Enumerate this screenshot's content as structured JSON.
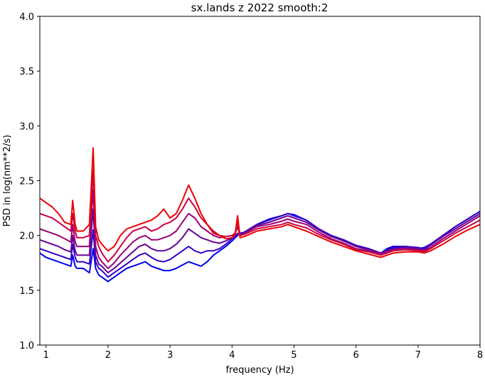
{
  "chart_data": {
    "type": "line",
    "title": "sx.lands z 2022 smooth:2",
    "xlabel": "frequency (Hz)",
    "ylabel": "PSD in log(nm**2/s)",
    "xlim": [
      0.9,
      8.0
    ],
    "ylim": [
      1.0,
      4.0
    ],
    "xticks": [
      1,
      2,
      3,
      4,
      5,
      6,
      7,
      8
    ],
    "yticks": [
      1.0,
      1.5,
      2.0,
      2.5,
      3.0,
      3.5,
      4.0
    ],
    "x_tick_labels": [
      "1",
      "2",
      "3",
      "4",
      "5",
      "6",
      "7",
      "8"
    ],
    "y_tick_labels": [
      "1.0",
      "1.5",
      "2.0",
      "2.5",
      "3.0",
      "3.5",
      "4.0"
    ],
    "grid": false,
    "legend": "none",
    "x": [
      0.9,
      1.0,
      1.1,
      1.2,
      1.3,
      1.4,
      1.43,
      1.47,
      1.5,
      1.6,
      1.7,
      1.76,
      1.8,
      1.85,
      1.9,
      2.0,
      2.1,
      2.2,
      2.3,
      2.4,
      2.5,
      2.6,
      2.7,
      2.8,
      2.9,
      3.0,
      3.1,
      3.2,
      3.3,
      3.4,
      3.5,
      3.6,
      3.7,
      3.8,
      3.9,
      4.0,
      4.05,
      4.09,
      4.13,
      4.2,
      4.4,
      4.6,
      4.8,
      4.9,
      5.0,
      5.2,
      5.4,
      5.6,
      5.8,
      6.0,
      6.2,
      6.4,
      6.5,
      6.6,
      6.8,
      7.0,
      7.1,
      7.2,
      7.4,
      7.6,
      7.8,
      8.0
    ],
    "series": [
      {
        "color": "#0000ee",
        "values": [
          1.84,
          1.8,
          1.78,
          1.76,
          1.74,
          1.72,
          1.82,
          1.72,
          1.7,
          1.7,
          1.66,
          1.88,
          1.7,
          1.64,
          1.62,
          1.58,
          1.62,
          1.66,
          1.7,
          1.72,
          1.74,
          1.76,
          1.72,
          1.7,
          1.68,
          1.68,
          1.7,
          1.73,
          1.76,
          1.74,
          1.72,
          1.76,
          1.82,
          1.86,
          1.9,
          1.95,
          1.98,
          2.0,
          2.02,
          2.03,
          2.1,
          2.15,
          2.18,
          2.2,
          2.19,
          2.14,
          2.06,
          2.0,
          1.96,
          1.91,
          1.88,
          1.84,
          1.88,
          1.9,
          1.9,
          1.88,
          1.89,
          1.92,
          2.0,
          2.08,
          2.15,
          2.22
        ]
      },
      {
        "color": "#3300cc",
        "values": [
          1.88,
          1.86,
          1.84,
          1.82,
          1.8,
          1.78,
          1.92,
          1.8,
          1.76,
          1.76,
          1.74,
          2.05,
          1.76,
          1.7,
          1.68,
          1.62,
          1.66,
          1.7,
          1.74,
          1.78,
          1.82,
          1.84,
          1.8,
          1.77,
          1.76,
          1.78,
          1.82,
          1.86,
          1.9,
          1.86,
          1.84,
          1.86,
          1.86,
          1.88,
          1.92,
          1.97,
          1.99,
          2.02,
          2.01,
          2.03,
          2.1,
          2.14,
          2.18,
          2.2,
          2.18,
          2.14,
          2.06,
          2.0,
          1.96,
          1.91,
          1.88,
          1.84,
          1.87,
          1.89,
          1.9,
          1.89,
          1.88,
          1.92,
          2.0,
          2.08,
          2.15,
          2.22
        ]
      },
      {
        "color": "#660099",
        "values": [
          1.96,
          1.94,
          1.92,
          1.9,
          1.87,
          1.85,
          2.0,
          1.86,
          1.82,
          1.82,
          1.82,
          2.24,
          1.82,
          1.74,
          1.72,
          1.66,
          1.7,
          1.75,
          1.8,
          1.85,
          1.9,
          1.92,
          1.88,
          1.86,
          1.86,
          1.88,
          1.92,
          1.98,
          2.06,
          2.02,
          1.98,
          1.96,
          1.94,
          1.93,
          1.95,
          1.98,
          2.0,
          2.02,
          2.0,
          2.02,
          2.09,
          2.12,
          2.16,
          2.18,
          2.16,
          2.12,
          2.05,
          1.99,
          1.95,
          1.9,
          1.87,
          1.84,
          1.86,
          1.88,
          1.89,
          1.88,
          1.87,
          1.91,
          1.99,
          2.06,
          2.13,
          2.2
        ]
      },
      {
        "color": "#990077",
        "values": [
          2.06,
          2.04,
          2.02,
          2.0,
          1.97,
          1.94,
          2.1,
          1.94,
          1.9,
          1.9,
          1.9,
          2.42,
          1.9,
          1.8,
          1.76,
          1.7,
          1.75,
          1.82,
          1.88,
          1.94,
          1.98,
          2.0,
          1.96,
          1.96,
          1.98,
          2.0,
          2.04,
          2.12,
          2.2,
          2.16,
          2.08,
          2.04,
          2.0,
          1.98,
          1.99,
          2.0,
          2.02,
          2.08,
          2.0,
          2.02,
          2.08,
          2.1,
          2.13,
          2.15,
          2.13,
          2.1,
          2.03,
          1.97,
          1.93,
          1.88,
          1.86,
          1.83,
          1.85,
          1.87,
          1.88,
          1.87,
          1.86,
          1.89,
          1.97,
          2.04,
          2.11,
          2.18
        ]
      },
      {
        "color": "#cc0044",
        "values": [
          2.2,
          2.18,
          2.16,
          2.12,
          2.08,
          2.04,
          2.2,
          2.04,
          1.98,
          1.98,
          2.0,
          2.6,
          2.0,
          1.9,
          1.84,
          1.76,
          1.82,
          1.9,
          1.98,
          2.04,
          2.06,
          2.08,
          2.04,
          2.06,
          2.1,
          2.12,
          2.16,
          2.24,
          2.34,
          2.26,
          2.16,
          2.1,
          2.04,
          2.0,
          1.99,
          2.0,
          2.02,
          2.13,
          2.0,
          2.01,
          2.06,
          2.08,
          2.1,
          2.12,
          2.1,
          2.07,
          2.01,
          1.96,
          1.92,
          1.87,
          1.85,
          1.82,
          1.84,
          1.86,
          1.87,
          1.86,
          1.85,
          1.88,
          1.95,
          2.02,
          2.08,
          2.14
        ]
      },
      {
        "color": "#ee0000",
        "values": [
          2.34,
          2.3,
          2.26,
          2.2,
          2.12,
          2.1,
          2.32,
          2.1,
          2.04,
          2.04,
          2.1,
          2.8,
          2.08,
          1.96,
          1.92,
          1.86,
          1.9,
          2.0,
          2.06,
          2.08,
          2.1,
          2.12,
          2.14,
          2.18,
          2.24,
          2.16,
          2.2,
          2.32,
          2.46,
          2.34,
          2.2,
          2.1,
          2.02,
          2.0,
          1.97,
          1.98,
          2.01,
          2.18,
          1.98,
          1.99,
          2.04,
          2.06,
          2.08,
          2.1,
          2.08,
          2.04,
          1.99,
          1.94,
          1.9,
          1.86,
          1.83,
          1.8,
          1.82,
          1.84,
          1.85,
          1.85,
          1.84,
          1.86,
          1.92,
          1.99,
          2.05,
          2.1
        ]
      }
    ]
  }
}
